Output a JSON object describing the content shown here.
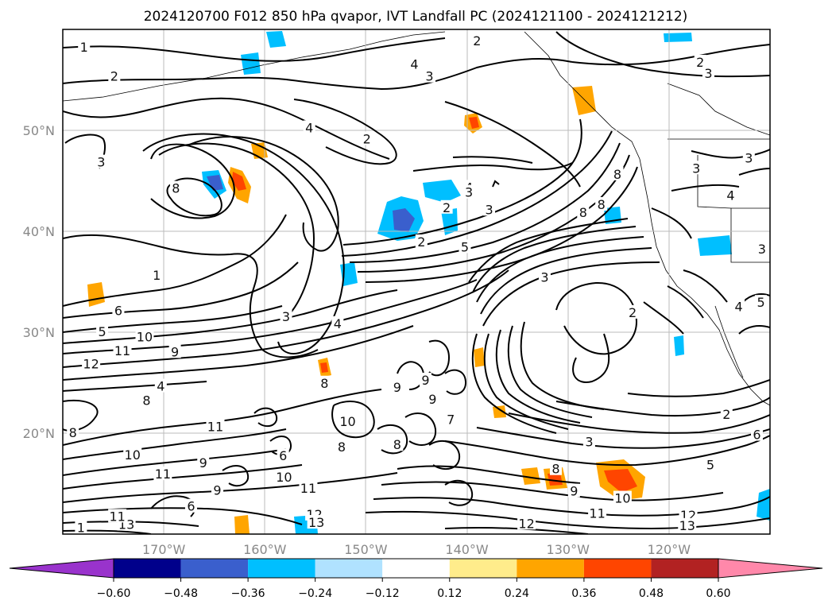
{
  "chart_data": {
    "type": "contour",
    "title": "2024120700 F012 850 hPa qvapor, IVT Landfall PC (2024121100 - 2024121212)",
    "map": {
      "lon_range": [
        -180,
        -110
      ],
      "lat_range": [
        10,
        60
      ],
      "gridlines": true,
      "coastlines": true,
      "lat_ticks": [
        {
          "value": 20,
          "label": "20°N"
        },
        {
          "value": 30,
          "label": "30°N"
        },
        {
          "value": 40,
          "label": "40°N"
        },
        {
          "value": 50,
          "label": "50°N"
        }
      ],
      "lon_ticks": [
        {
          "value": -170,
          "label": "170°W"
        },
        {
          "value": -160,
          "label": "160°W"
        },
        {
          "value": -150,
          "label": "150°W"
        },
        {
          "value": -140,
          "label": "140°W"
        },
        {
          "value": -130,
          "label": "130°W"
        },
        {
          "value": -120,
          "label": "120°W"
        }
      ]
    },
    "contour_lines": {
      "field": "850 hPa qvapor",
      "color": "#000000",
      "labels": [
        {
          "v": "1",
          "lon": -177.9,
          "lat": 58.2
        },
        {
          "v": "2",
          "lon": -174.9,
          "lat": 55.3
        },
        {
          "v": "2",
          "lon": -139,
          "lat": 58.8
        },
        {
          "v": "4",
          "lon": -145.2,
          "lat": 56.5
        },
        {
          "v": "3",
          "lon": -143.7,
          "lat": 55.3
        },
        {
          "v": "2",
          "lon": -116.9,
          "lat": 56.7
        },
        {
          "v": "3",
          "lon": -116.1,
          "lat": 55.6
        },
        {
          "v": "4",
          "lon": -155.6,
          "lat": 50.2
        },
        {
          "v": "2",
          "lon": -149.9,
          "lat": 49.1
        },
        {
          "v": "3",
          "lon": -176.2,
          "lat": 46.8
        },
        {
          "v": "8",
          "lon": -168.8,
          "lat": 44.2
        },
        {
          "v": "4",
          "lon": -139.8,
          "lat": 44.3
        },
        {
          "v": "3",
          "lon": -139.8,
          "lat": 43.8
        },
        {
          "v": "2",
          "lon": -142,
          "lat": 42.3
        },
        {
          "v": "2",
          "lon": -144.5,
          "lat": 38.9
        },
        {
          "v": "5",
          "lon": -140.2,
          "lat": 38.4
        },
        {
          "v": "3",
          "lon": -137.8,
          "lat": 42.1
        },
        {
          "v": "8",
          "lon": -125.1,
          "lat": 45.6
        },
        {
          "v": "8",
          "lon": -126.7,
          "lat": 42.6
        },
        {
          "v": "8",
          "lon": -128.5,
          "lat": 41.8
        },
        {
          "v": "1",
          "lon": -170.7,
          "lat": 35.6
        },
        {
          "v": "6",
          "lon": -174.5,
          "lat": 32.1
        },
        {
          "v": "5",
          "lon": -176.1,
          "lat": 30.0
        },
        {
          "v": "10",
          "lon": -171.9,
          "lat": 29.5
        },
        {
          "v": "11",
          "lon": -174.1,
          "lat": 28.1
        },
        {
          "v": "9",
          "lon": -168.9,
          "lat": 28.0
        },
        {
          "v": "12",
          "lon": -177.2,
          "lat": 26.8
        },
        {
          "v": "3",
          "lon": -157.9,
          "lat": 31.5
        },
        {
          "v": "4",
          "lon": -152.8,
          "lat": 30.8
        },
        {
          "v": "4",
          "lon": -170.3,
          "lat": 24.6
        },
        {
          "v": "8",
          "lon": -171.7,
          "lat": 23.2
        },
        {
          "v": "8",
          "lon": -179,
          "lat": 20.0
        },
        {
          "v": "3",
          "lon": -132.3,
          "lat": 35.4
        },
        {
          "v": "2",
          "lon": -123.6,
          "lat": 31.9
        },
        {
          "v": "8",
          "lon": -154.1,
          "lat": 24.9
        },
        {
          "v": "9",
          "lon": -146.9,
          "lat": 24.5
        },
        {
          "v": "9",
          "lon": -144.1,
          "lat": 25.2
        },
        {
          "v": "9",
          "lon": -143.4,
          "lat": 23.3
        },
        {
          "v": "8",
          "lon": -152.4,
          "lat": 18.6
        },
        {
          "v": "11",
          "lon": -164.9,
          "lat": 20.6
        },
        {
          "v": "10",
          "lon": -151.8,
          "lat": 21.1
        },
        {
          "v": "8",
          "lon": -146.9,
          "lat": 18.8
        },
        {
          "v": "7",
          "lon": -141.6,
          "lat": 21.3
        },
        {
          "v": "10",
          "lon": -173.1,
          "lat": 17.8
        },
        {
          "v": "9",
          "lon": -166.1,
          "lat": 17.0
        },
        {
          "v": "6",
          "lon": -158.2,
          "lat": 17.7
        },
        {
          "v": "11",
          "lon": -170.1,
          "lat": 15.9
        },
        {
          "v": "9",
          "lon": -164.7,
          "lat": 14.3
        },
        {
          "v": "10",
          "lon": -158.1,
          "lat": 15.6
        },
        {
          "v": "11",
          "lon": -155.7,
          "lat": 14.5
        },
        {
          "v": "6",
          "lon": -167.3,
          "lat": 12.7
        },
        {
          "v": "13",
          "lon": -173.7,
          "lat": 10.9
        },
        {
          "v": "11",
          "lon": -174.6,
          "lat": 11.7
        },
        {
          "v": "1",
          "lon": -178.2,
          "lat": 10.6
        },
        {
          "v": "12",
          "lon": -155.1,
          "lat": 11.9
        },
        {
          "v": "13",
          "lon": -154.9,
          "lat": 11.1
        },
        {
          "v": "9",
          "lon": -129.4,
          "lat": 14.2
        },
        {
          "v": "10",
          "lon": -124.6,
          "lat": 13.5
        },
        {
          "v": "3",
          "lon": -127.9,
          "lat": 19.1
        },
        {
          "v": "8",
          "lon": -131.2,
          "lat": 16.4
        },
        {
          "v": "11",
          "lon": -127.1,
          "lat": 12.0
        },
        {
          "v": "12",
          "lon": -134.1,
          "lat": 11.0
        },
        {
          "v": "12",
          "lon": -118.1,
          "lat": 11.8
        },
        {
          "v": "13",
          "lon": -118.2,
          "lat": 10.8
        },
        {
          "v": "2",
          "lon": -114.3,
          "lat": 21.8
        },
        {
          "v": "5",
          "lon": -115.9,
          "lat": 16.8
        },
        {
          "v": "4",
          "lon": -113.9,
          "lat": 43.5
        },
        {
          "v": "3",
          "lon": -117.3,
          "lat": 46.2
        },
        {
          "v": "3",
          "lon": -112.1,
          "lat": 47.2
        },
        {
          "v": "3",
          "lon": -110.8,
          "lat": 38.2
        },
        {
          "v": "5",
          "lon": -110.9,
          "lat": 32.9
        },
        {
          "v": "4",
          "lon": -113.1,
          "lat": 32.5
        },
        {
          "v": "6",
          "lon": -111.3,
          "lat": 19.8
        }
      ]
    },
    "filled": {
      "field": "IVT Landfall PC",
      "regions": [
        {
          "lon": -163.3,
          "lat": 44.8,
          "value": 0.48
        },
        {
          "lon": -164.8,
          "lat": 44.7,
          "value": -0.48
        },
        {
          "lon": -146.1,
          "lat": 41.3,
          "value": -0.48
        },
        {
          "lon": -141.9,
          "lat": 43.8,
          "value": -0.24
        },
        {
          "lon": -166.4,
          "lat": 38.4,
          "value": 0.24
        },
        {
          "lon": -140.3,
          "lat": 51,
          "value": 0.36
        },
        {
          "lon": -150.6,
          "lat": 26.7,
          "value": 0.36
        },
        {
          "lon": -124,
          "lat": 14.9,
          "value": 0.48
        },
        {
          "lon": -131.9,
          "lat": 15.5,
          "value": 0.36
        },
        {
          "lon": -119.8,
          "lat": 38.3,
          "value": -0.36
        },
        {
          "lon": -129.5,
          "lat": 53.8,
          "value": 0.24
        },
        {
          "lon": -174.9,
          "lat": 34.9,
          "value": 0.24
        }
      ]
    },
    "colorbar": {
      "orientation": "horizontal",
      "extend": "both",
      "levels": [
        -0.6,
        -0.48,
        -0.36,
        -0.24,
        -0.12,
        0.12,
        0.24,
        0.36,
        0.48,
        0.6
      ],
      "tick_labels": [
        "−0.60",
        "−0.48",
        "−0.36",
        "−0.24",
        "−0.12",
        "0.12",
        "0.24",
        "0.36",
        "0.48",
        "0.60"
      ],
      "colors": [
        "#9933cc",
        "#00008b",
        "#3a5fcd",
        "#00bfff",
        "#b0e2ff",
        "#ffffff",
        "#ffec8b",
        "#ffa500",
        "#ff4500",
        "#b22222",
        "#ff88aa"
      ]
    }
  }
}
